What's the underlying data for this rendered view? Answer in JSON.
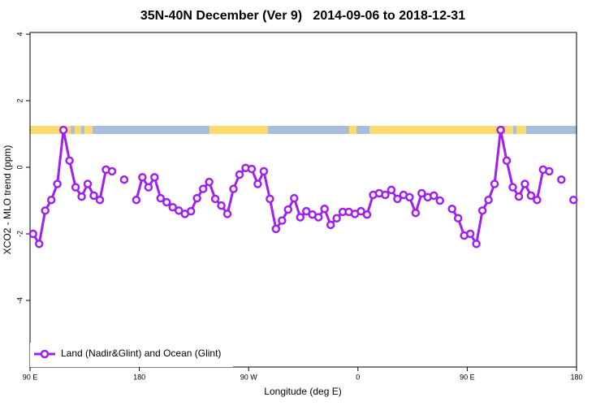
{
  "chart_data": {
    "type": "line",
    "title": "35N-40N December (Ver 9)   2014-09-06 to 2018-12-31",
    "xlabel": "Longitude (deg E)",
    "ylabel": "XCO2 - MLO trend (ppm)",
    "xlim": [
      90,
      540
    ],
    "ylim": [
      -6,
      4.05
    ],
    "xticks": [
      {
        "value": 90,
        "label": "90 E"
      },
      {
        "value": 180,
        "label": "180"
      },
      {
        "value": 270,
        "label": "90 W"
      },
      {
        "value": 360,
        "label": "0"
      },
      {
        "value": 450,
        "label": "90 E"
      },
      {
        "value": 540,
        "label": "180"
      }
    ],
    "yticks": [
      -4,
      -2,
      0,
      2,
      4
    ],
    "legend": "bottomleft",
    "x": [
      92.5,
      97.5,
      102.5,
      107.5,
      112.5,
      117.5,
      122.5,
      127.5,
      132.5,
      137.5,
      142.5,
      147.5,
      152.5,
      157.5,
      162.5,
      167.5,
      172.5,
      177.5,
      182.5,
      187.5,
      192.5,
      197.5,
      202.5,
      207.5,
      212.5,
      217.5,
      222.5,
      227.5,
      232.5,
      237.5,
      242.5,
      247.5,
      252.5,
      257.5,
      262.5,
      267.5,
      272.5,
      277.5,
      282.5,
      287.5,
      292.5,
      297.5,
      302.5,
      307.5,
      312.5,
      317.5,
      322.5,
      327.5,
      332.5,
      337.5,
      342.5,
      347.5,
      352.5,
      357.5,
      362.5,
      367.5,
      372.5,
      377.5,
      382.5,
      387.5,
      392.5,
      397.5,
      402.5,
      407.5,
      412.5,
      417.5,
      422.5,
      427.5,
      432.5,
      437.5,
      442.5,
      447.5,
      452.5,
      457.5,
      462.5,
      467.5,
      472.5,
      477.5,
      482.5,
      487.5,
      492.5,
      497.5,
      502.5,
      507.5,
      512.5,
      517.5,
      522.5,
      527.5,
      532.5,
      537.5
    ],
    "series": [
      {
        "name": "Land (Nadir&Glint) and Ocean (Glint)",
        "color": "#a020f0",
        "values": [
          -2.0,
          -2.3,
          -1.3,
          -0.98,
          -0.5,
          1.12,
          0.2,
          -0.6,
          -0.88,
          -0.5,
          -0.85,
          -0.98,
          -0.07,
          -0.12,
          null,
          -0.37,
          null,
          -0.98,
          -0.3,
          -0.6,
          -0.3,
          -0.93,
          -1.05,
          -1.2,
          -1.3,
          -1.4,
          -1.32,
          -0.93,
          -0.65,
          -0.44,
          -0.95,
          -1.15,
          -1.4,
          -0.65,
          -0.22,
          -0.02,
          -0.05,
          -0.5,
          -0.12,
          -0.95,
          -1.85,
          -1.6,
          -1.27,
          -0.93,
          -1.5,
          -1.32,
          -1.42,
          -1.5,
          -1.25,
          -1.73,
          -1.53,
          -1.34,
          -1.34,
          -1.4,
          -1.32,
          -1.42,
          -0.83,
          -0.78,
          -0.83,
          -0.68,
          -0.95,
          -0.83,
          -0.9,
          -1.37,
          -0.78,
          -0.9,
          -0.85,
          -1.0,
          null,
          -1.25,
          -1.53,
          -2.05,
          -2.0,
          -2.3,
          -1.3,
          -0.98,
          -0.5,
          1.12,
          0.2,
          -0.6,
          -0.88,
          -0.5,
          -0.85,
          -0.98,
          -0.07,
          -0.12,
          null,
          -0.37,
          null,
          -0.98
        ]
      }
    ]
  }
}
